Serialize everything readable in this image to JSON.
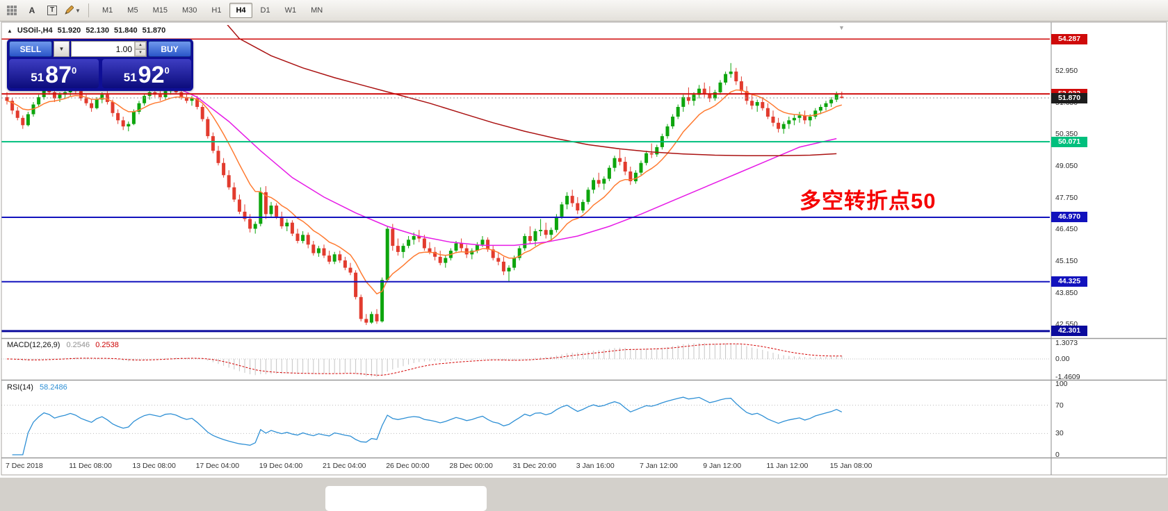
{
  "toolbar": {
    "tools": [
      {
        "name": "grid-icon"
      },
      {
        "name": "text-a-tool",
        "label": "A"
      },
      {
        "name": "text-box-tool",
        "label": "T"
      },
      {
        "name": "draw-tools-dropdown"
      }
    ],
    "timeframes": [
      "M1",
      "M5",
      "M15",
      "M30",
      "H1",
      "H4",
      "D1",
      "W1",
      "MN"
    ],
    "active_timeframe": "H4"
  },
  "chart": {
    "symbol": "USOil-,H4",
    "open": "51.920",
    "high": "52.130",
    "low": "51.840",
    "close": "51.870"
  },
  "oct": {
    "sell_label": "SELL",
    "buy_label": "BUY",
    "volume": "1.00",
    "sell_small": "51",
    "sell_big": "87",
    "sell_sup": "0",
    "buy_small": "51",
    "buy_big": "92",
    "buy_sup": "0"
  },
  "annotation": {
    "text": "多空转折点50",
    "color": "#f50000"
  },
  "indicators": {
    "macd": {
      "title": "MACD(12,26,9)",
      "main_value": "0.2546",
      "signal_value": "0.2538",
      "scale": [
        "1.3073",
        "0.00",
        "-1.4609"
      ]
    },
    "rsi": {
      "title": "RSI(14)",
      "value": "58.2486",
      "scale": [
        "100",
        "70",
        "30",
        "0"
      ],
      "level_lines": [
        70,
        30
      ]
    }
  },
  "chart_data": {
    "type": "candlestick",
    "symbol": "USOil-",
    "timeframe": "H4",
    "current_price": 51.87,
    "ylim": [
      42.3,
      54.6
    ],
    "y_ticks": [
      52.95,
      51.65,
      50.35,
      49.05,
      47.75,
      46.45,
      45.15,
      43.85,
      42.55
    ],
    "x_labels": [
      "7 Dec 2018",
      "11 Dec 08:00",
      "13 Dec 08:00",
      "17 Dec 04:00",
      "19 Dec 04:00",
      "21 Dec 04:00",
      "26 Dec 00:00",
      "28 Dec 00:00",
      "31 Dec 20:00",
      "3 Jan 16:00",
      "7 Jan 12:00",
      "9 Jan 12:00",
      "11 Jan 12:00",
      "15 Jan 08:00"
    ],
    "bars_per_label": 12,
    "colors": {
      "up": "#0da50d",
      "down": "#e23b2e",
      "ma_fast": "#ff7a30",
      "ma_mid": "#e61ae6",
      "ma_slow": "#aa1111",
      "macd_hist": "#c4c4c4",
      "macd_signal": "#d40000",
      "rsi_line": "#2d8fd5",
      "hline_red": "#cf0a0a",
      "hline_green": "#00bf7d",
      "hline_blue": "#1212bd",
      "current_tag": "#1d1d1d"
    },
    "hlines": [
      {
        "price": 54.287,
        "color": "#cf0a0a",
        "width": 1.5
      },
      {
        "price": 52.032,
        "color": "#cf0a0a",
        "width": 2
      },
      {
        "price": 50.071,
        "color": "#00bf7d",
        "width": 2
      },
      {
        "price": 46.97,
        "color": "#1212bd",
        "width": 2
      },
      {
        "price": 44.325,
        "color": "#1212bd",
        "width": 2
      },
      {
        "price": 42.301,
        "color": "#0b0b9d",
        "width": 3
      }
    ],
    "overlays": [
      {
        "name": "ma-fast",
        "type": "ema",
        "period": 10,
        "color": "#ff7a30"
      },
      {
        "name": "ma-mid",
        "type": "waypoints",
        "color": "#e61ae6",
        "points": [
          [
            30,
            52.5
          ],
          [
            36,
            51.9
          ],
          [
            42,
            50.9
          ],
          [
            48,
            49.7
          ],
          [
            54,
            48.6
          ],
          [
            60,
            47.8
          ],
          [
            66,
            47.15
          ],
          [
            72,
            46.6
          ],
          [
            78,
            46.2
          ],
          [
            84,
            45.95
          ],
          [
            90,
            45.82
          ],
          [
            96,
            45.82
          ],
          [
            102,
            45.95
          ],
          [
            108,
            46.2
          ],
          [
            114,
            46.6
          ],
          [
            120,
            47.1
          ],
          [
            126,
            47.65
          ],
          [
            132,
            48.2
          ],
          [
            138,
            48.75
          ],
          [
            144,
            49.3
          ],
          [
            150,
            49.85
          ],
          [
            157,
            50.2
          ]
        ]
      },
      {
        "name": "ma-slow",
        "type": "waypoints",
        "color": "#aa1111",
        "points": [
          [
            38,
            55.8
          ],
          [
            44,
            54.3
          ],
          [
            50,
            53.6
          ],
          [
            56,
            53.1
          ],
          [
            62,
            52.7
          ],
          [
            68,
            52.35
          ],
          [
            74,
            52.0
          ],
          [
            80,
            51.65
          ],
          [
            86,
            51.25
          ],
          [
            92,
            50.85
          ],
          [
            98,
            50.5
          ],
          [
            104,
            50.2
          ],
          [
            110,
            49.95
          ],
          [
            116,
            49.78
          ],
          [
            122,
            49.65
          ],
          [
            128,
            49.57
          ],
          [
            134,
            49.52
          ],
          [
            140,
            49.5
          ],
          [
            146,
            49.5
          ],
          [
            152,
            49.52
          ],
          [
            157,
            49.58
          ]
        ]
      }
    ],
    "macd": {
      "fast": 12,
      "slow": 26,
      "signal": 9,
      "scale_max": 1.3073,
      "scale_min": -1.4609
    },
    "rsi": {
      "period": 14,
      "last": 58.2486,
      "levels": [
        70,
        30
      ]
    },
    "candles": [
      [
        51.9,
        52.1,
        51.6,
        51.75
      ],
      [
        51.75,
        51.85,
        51.2,
        51.35
      ],
      [
        51.35,
        51.5,
        50.95,
        51.05
      ],
      [
        51.05,
        51.15,
        50.6,
        50.75
      ],
      [
        50.75,
        51.3,
        50.7,
        51.2
      ],
      [
        51.2,
        51.7,
        51.1,
        51.6
      ],
      [
        51.6,
        52.0,
        51.5,
        51.9
      ],
      [
        51.9,
        52.3,
        51.8,
        52.2
      ],
      [
        52.2,
        52.45,
        52.0,
        52.1
      ],
      [
        52.1,
        52.25,
        51.7,
        51.85
      ],
      [
        51.85,
        52.1,
        51.7,
        52.0
      ],
      [
        52.0,
        52.2,
        51.85,
        52.1
      ],
      [
        52.1,
        52.4,
        51.95,
        52.3
      ],
      [
        52.3,
        52.5,
        52.05,
        52.15
      ],
      [
        52.15,
        52.25,
        51.75,
        51.85
      ],
      [
        51.85,
        52.0,
        51.55,
        51.65
      ],
      [
        51.65,
        51.8,
        51.3,
        51.45
      ],
      [
        51.45,
        51.9,
        51.4,
        51.8
      ],
      [
        51.8,
        52.1,
        51.65,
        52.0
      ],
      [
        52.0,
        52.15,
        51.6,
        51.7
      ],
      [
        51.7,
        51.8,
        51.1,
        51.25
      ],
      [
        51.25,
        51.4,
        50.8,
        50.95
      ],
      [
        50.95,
        51.1,
        50.55,
        50.7
      ],
      [
        50.7,
        50.9,
        50.5,
        50.8
      ],
      [
        50.8,
        51.4,
        50.75,
        51.3
      ],
      [
        51.3,
        51.75,
        51.2,
        51.65
      ],
      [
        51.65,
        52.05,
        51.55,
        51.95
      ],
      [
        51.95,
        52.2,
        51.8,
        52.1
      ],
      [
        52.1,
        52.3,
        51.9,
        52.0
      ],
      [
        52.0,
        52.15,
        51.75,
        51.9
      ],
      [
        51.9,
        52.25,
        51.8,
        52.15
      ],
      [
        52.15,
        52.35,
        52.0,
        52.2
      ],
      [
        52.2,
        52.4,
        52.05,
        52.1
      ],
      [
        52.1,
        52.2,
        51.8,
        51.9
      ],
      [
        51.9,
        52.05,
        51.65,
        51.75
      ],
      [
        51.75,
        51.95,
        51.55,
        51.85
      ],
      [
        51.85,
        51.95,
        51.4,
        51.5
      ],
      [
        51.5,
        51.6,
        50.9,
        51.0
      ],
      [
        51.0,
        51.1,
        50.2,
        50.3
      ],
      [
        50.3,
        50.45,
        49.6,
        49.7
      ],
      [
        49.7,
        49.9,
        49.1,
        49.2
      ],
      [
        49.2,
        49.4,
        48.6,
        48.7
      ],
      [
        48.7,
        48.9,
        48.1,
        48.2
      ],
      [
        48.2,
        48.4,
        47.6,
        47.7
      ],
      [
        47.7,
        47.9,
        47.1,
        47.2
      ],
      [
        47.2,
        47.5,
        46.8,
        46.9
      ],
      [
        46.9,
        47.1,
        46.35,
        46.5
      ],
      [
        46.5,
        46.8,
        46.3,
        46.7
      ],
      [
        46.7,
        48.2,
        46.6,
        48.0
      ],
      [
        48.0,
        48.25,
        46.9,
        47.1
      ],
      [
        47.1,
        47.6,
        47.0,
        47.45
      ],
      [
        47.45,
        47.55,
        46.9,
        47.0
      ],
      [
        47.0,
        47.2,
        46.5,
        46.6
      ],
      [
        46.6,
        46.9,
        46.4,
        46.75
      ],
      [
        46.75,
        46.85,
        46.2,
        46.3
      ],
      [
        46.3,
        46.5,
        45.9,
        46.0
      ],
      [
        46.0,
        46.4,
        45.9,
        46.25
      ],
      [
        46.25,
        46.35,
        45.7,
        45.85
      ],
      [
        45.85,
        46.0,
        45.4,
        45.5
      ],
      [
        45.5,
        45.8,
        45.35,
        45.7
      ],
      [
        45.7,
        45.85,
        45.3,
        45.4
      ],
      [
        45.4,
        45.6,
        45.05,
        45.15
      ],
      [
        45.15,
        45.55,
        45.05,
        45.45
      ],
      [
        45.45,
        45.6,
        45.1,
        45.2
      ],
      [
        45.2,
        45.35,
        44.8,
        44.9
      ],
      [
        44.9,
        45.1,
        44.6,
        44.7
      ],
      [
        44.7,
        44.8,
        43.6,
        43.7
      ],
      [
        43.7,
        43.8,
        42.7,
        42.8
      ],
      [
        42.8,
        43.0,
        42.55,
        42.65
      ],
      [
        42.65,
        43.1,
        42.6,
        43.0
      ],
      [
        43.0,
        43.2,
        42.6,
        42.7
      ],
      [
        42.7,
        44.5,
        42.65,
        44.4
      ],
      [
        44.4,
        46.6,
        44.3,
        46.5
      ],
      [
        46.5,
        46.7,
        45.6,
        45.8
      ],
      [
        45.8,
        46.1,
        45.4,
        45.55
      ],
      [
        45.55,
        45.9,
        45.3,
        45.8
      ],
      [
        45.8,
        46.2,
        45.7,
        46.05
      ],
      [
        46.05,
        46.35,
        45.85,
        46.2
      ],
      [
        46.2,
        46.45,
        45.95,
        46.1
      ],
      [
        46.1,
        46.25,
        45.6,
        45.7
      ],
      [
        45.7,
        45.95,
        45.45,
        45.55
      ],
      [
        45.55,
        45.75,
        45.2,
        45.35
      ],
      [
        45.35,
        45.6,
        45.0,
        45.1
      ],
      [
        45.1,
        45.4,
        44.9,
        45.3
      ],
      [
        45.3,
        45.7,
        45.2,
        45.6
      ],
      [
        45.6,
        46.0,
        45.5,
        45.9
      ],
      [
        45.9,
        46.1,
        45.55,
        45.7
      ],
      [
        45.7,
        45.85,
        45.3,
        45.45
      ],
      [
        45.45,
        45.7,
        45.25,
        45.6
      ],
      [
        45.6,
        45.95,
        45.5,
        45.85
      ],
      [
        45.85,
        46.2,
        45.75,
        46.05
      ],
      [
        46.05,
        46.15,
        45.55,
        45.65
      ],
      [
        45.65,
        45.8,
        45.2,
        45.3
      ],
      [
        45.3,
        45.55,
        45.0,
        45.15
      ],
      [
        45.15,
        45.35,
        44.6,
        44.75
      ],
      [
        44.75,
        45.0,
        44.35,
        44.9
      ],
      [
        44.9,
        45.4,
        44.8,
        45.3
      ],
      [
        45.3,
        45.8,
        45.2,
        45.7
      ],
      [
        45.7,
        46.3,
        45.6,
        46.2
      ],
      [
        46.2,
        46.6,
        45.9,
        46.0
      ],
      [
        46.0,
        46.5,
        45.8,
        46.4
      ],
      [
        46.4,
        46.9,
        46.2,
        46.45
      ],
      [
        46.45,
        46.75,
        46.1,
        46.25
      ],
      [
        46.25,
        46.55,
        46.0,
        46.45
      ],
      [
        46.45,
        47.1,
        46.35,
        47.0
      ],
      [
        47.0,
        47.6,
        46.9,
        47.5
      ],
      [
        47.5,
        48.0,
        47.3,
        47.85
      ],
      [
        47.85,
        48.1,
        47.4,
        47.55
      ],
      [
        47.55,
        47.8,
        47.1,
        47.25
      ],
      [
        47.25,
        47.7,
        47.15,
        47.6
      ],
      [
        47.6,
        48.2,
        47.5,
        48.1
      ],
      [
        48.1,
        48.6,
        47.95,
        48.5
      ],
      [
        48.5,
        48.8,
        48.2,
        48.35
      ],
      [
        48.35,
        48.65,
        48.1,
        48.55
      ],
      [
        48.55,
        49.1,
        48.45,
        49.0
      ],
      [
        49.0,
        49.5,
        48.85,
        49.4
      ],
      [
        49.4,
        49.75,
        49.1,
        49.25
      ],
      [
        49.25,
        49.45,
        48.7,
        48.85
      ],
      [
        48.85,
        49.05,
        48.3,
        48.45
      ],
      [
        48.45,
        48.9,
        48.35,
        48.8
      ],
      [
        48.8,
        49.3,
        48.7,
        49.2
      ],
      [
        49.2,
        49.7,
        49.1,
        49.6
      ],
      [
        49.6,
        50.0,
        49.4,
        49.55
      ],
      [
        49.55,
        49.95,
        49.45,
        49.85
      ],
      [
        49.85,
        50.4,
        49.75,
        50.3
      ],
      [
        50.3,
        50.8,
        50.2,
        50.7
      ],
      [
        50.7,
        51.2,
        50.6,
        51.1
      ],
      [
        51.1,
        51.6,
        51.0,
        51.5
      ],
      [
        51.5,
        52.0,
        51.3,
        51.9
      ],
      [
        51.9,
        52.3,
        51.6,
        51.75
      ],
      [
        51.75,
        52.1,
        51.55,
        52.0
      ],
      [
        52.0,
        52.4,
        51.85,
        52.25
      ],
      [
        52.25,
        52.5,
        51.9,
        52.05
      ],
      [
        52.05,
        52.35,
        51.7,
        51.85
      ],
      [
        51.85,
        52.2,
        51.75,
        52.1
      ],
      [
        52.1,
        52.6,
        52.0,
        52.5
      ],
      [
        52.5,
        52.95,
        52.4,
        52.85
      ],
      [
        52.85,
        53.3,
        52.7,
        52.95
      ],
      [
        52.95,
        53.1,
        52.4,
        52.55
      ],
      [
        52.55,
        52.75,
        52.0,
        52.15
      ],
      [
        52.15,
        52.35,
        51.6,
        51.75
      ],
      [
        51.75,
        52.0,
        51.4,
        51.55
      ],
      [
        51.55,
        51.8,
        51.3,
        51.7
      ],
      [
        51.7,
        51.9,
        51.35,
        51.45
      ],
      [
        51.45,
        51.65,
        51.0,
        51.1
      ],
      [
        51.1,
        51.35,
        50.7,
        50.85
      ],
      [
        50.85,
        51.05,
        50.45,
        50.6
      ],
      [
        50.6,
        50.9,
        50.4,
        50.8
      ],
      [
        50.8,
        51.1,
        50.6,
        50.95
      ],
      [
        50.95,
        51.2,
        50.75,
        51.05
      ],
      [
        51.05,
        51.3,
        50.85,
        51.15
      ],
      [
        51.15,
        51.35,
        50.8,
        50.95
      ],
      [
        50.95,
        51.2,
        50.7,
        51.1
      ],
      [
        51.1,
        51.45,
        51.0,
        51.35
      ],
      [
        51.35,
        51.6,
        51.2,
        51.5
      ],
      [
        51.5,
        51.75,
        51.35,
        51.65
      ],
      [
        51.65,
        51.9,
        51.5,
        51.8
      ],
      [
        51.8,
        52.13,
        51.7,
        52.05
      ],
      [
        51.92,
        52.13,
        51.84,
        51.87
      ]
    ]
  }
}
